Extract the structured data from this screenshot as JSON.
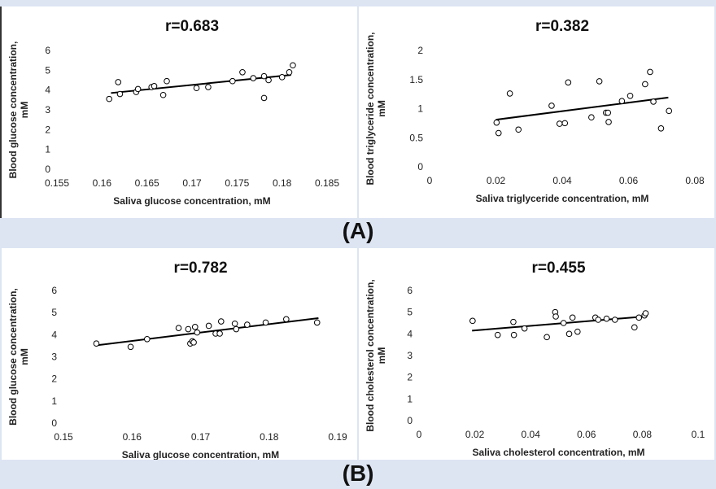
{
  "section_labels": [
    "(A)",
    "(B)"
  ],
  "chart_data": [
    {
      "id": "A1",
      "type": "scatter",
      "title": "r=0.683",
      "xlabel": "Saliva glucose concentration,  mM",
      "ylabel": [
        "Blood glucose concentration,",
        "mM"
      ],
      "xlim": [
        0.155,
        0.185
      ],
      "ylim": [
        0,
        6
      ],
      "xticks": [
        0.155,
        0.16,
        0.165,
        0.17,
        0.175,
        0.18,
        0.185
      ],
      "yticks": [
        0,
        1,
        2,
        3,
        4,
        5,
        6
      ],
      "xtick_labels": [
        "0.155",
        "0.16",
        "0.165",
        "0.17",
        "0.175",
        "0.18",
        "0.185"
      ],
      "ytick_labels": [
        "0",
        "1",
        "2",
        "3",
        "4",
        "5",
        "6"
      ],
      "trendline": [
        [
          0.161,
          3.85
        ],
        [
          0.181,
          4.76
        ]
      ],
      "points": [
        [
          0.1608,
          3.55
        ],
        [
          0.1618,
          4.4
        ],
        [
          0.162,
          3.8
        ],
        [
          0.1638,
          3.9
        ],
        [
          0.164,
          4.05
        ],
        [
          0.1655,
          4.15
        ],
        [
          0.1658,
          4.2
        ],
        [
          0.1668,
          3.75
        ],
        [
          0.1672,
          4.45
        ],
        [
          0.1705,
          4.1
        ],
        [
          0.1718,
          4.15
        ],
        [
          0.1745,
          4.45
        ],
        [
          0.1756,
          4.9
        ],
        [
          0.1768,
          4.6
        ],
        [
          0.178,
          4.7
        ],
        [
          0.178,
          3.6
        ],
        [
          0.1785,
          4.5
        ],
        [
          0.18,
          4.65
        ],
        [
          0.1808,
          4.9
        ],
        [
          0.1812,
          5.25
        ]
      ]
    },
    {
      "id": "A2",
      "type": "scatter",
      "title": "r=0.382",
      "xlabel": "Saliva triglyceride concentration,  mM",
      "ylabel": [
        "Blood triglyceride concentration,",
        "mM"
      ],
      "xlim": [
        0,
        0.08
      ],
      "ylim": [
        0,
        2
      ],
      "xticks": [
        0,
        0.02,
        0.04,
        0.06,
        0.08
      ],
      "yticks": [
        0,
        0.5,
        1,
        1.5,
        2
      ],
      "xtick_labels": [
        "0",
        "0.02",
        "0.04",
        "0.06",
        "0.08"
      ],
      "ytick_labels": [
        "0",
        "0.5",
        "1",
        "1.5",
        "2"
      ],
      "trendline": [
        [
          0.02,
          0.81
        ],
        [
          0.072,
          1.19
        ]
      ],
      "points": [
        [
          0.0202,
          0.76
        ],
        [
          0.0208,
          0.58
        ],
        [
          0.0242,
          1.26
        ],
        [
          0.0268,
          0.64
        ],
        [
          0.0368,
          1.05
        ],
        [
          0.0392,
          0.74
        ],
        [
          0.0408,
          0.75
        ],
        [
          0.0418,
          1.45
        ],
        [
          0.0488,
          0.85
        ],
        [
          0.0512,
          1.47
        ],
        [
          0.0532,
          0.93
        ],
        [
          0.0538,
          0.93
        ],
        [
          0.054,
          0.77
        ],
        [
          0.058,
          1.13
        ],
        [
          0.0605,
          1.22
        ],
        [
          0.065,
          1.42
        ],
        [
          0.0665,
          1.63
        ],
        [
          0.0675,
          1.12
        ],
        [
          0.0698,
          0.66
        ],
        [
          0.0722,
          0.96
        ]
      ]
    },
    {
      "id": "B1",
      "type": "scatter",
      "title": "r=0.782",
      "xlabel": "Saliva glucose concentration,  mM",
      "ylabel": [
        "Blood glucose concentration,",
        "mM"
      ],
      "xlim": [
        0.15,
        0.19
      ],
      "ylim": [
        0,
        6
      ],
      "xticks": [
        0.15,
        0.16,
        0.17,
        0.18,
        0.19
      ],
      "yticks": [
        0,
        1,
        2,
        3,
        4,
        5,
        6
      ],
      "xtick_labels": [
        "0.15",
        "0.16",
        "0.17",
        "0.18",
        "0.19"
      ],
      "ytick_labels": [
        "0",
        "1",
        "2",
        "3",
        "4",
        "5",
        "6"
      ],
      "trendline": [
        [
          0.1548,
          3.52
        ],
        [
          0.1872,
          4.75
        ]
      ],
      "points": [
        [
          0.1548,
          3.6
        ],
        [
          0.1598,
          3.45
        ],
        [
          0.1622,
          3.8
        ],
        [
          0.1668,
          4.3
        ],
        [
          0.1682,
          4.25
        ],
        [
          0.1685,
          3.6
        ],
        [
          0.1688,
          3.7
        ],
        [
          0.169,
          3.65
        ],
        [
          0.1692,
          4.35
        ],
        [
          0.1695,
          4.1
        ],
        [
          0.1712,
          4.4
        ],
        [
          0.1722,
          4.05
        ],
        [
          0.1728,
          4.05
        ],
        [
          0.173,
          4.6
        ],
        [
          0.175,
          4.5
        ],
        [
          0.1752,
          4.25
        ],
        [
          0.1768,
          4.45
        ],
        [
          0.1795,
          4.55
        ],
        [
          0.1825,
          4.7
        ],
        [
          0.187,
          4.55
        ]
      ]
    },
    {
      "id": "B2",
      "type": "scatter",
      "title": "r=0.455",
      "xlabel": "Saliva cholesterol concentration,  mM",
      "ylabel": [
        "Blood cholesterol concentration,",
        "mM"
      ],
      "xlim": [
        0,
        0.1
      ],
      "ylim": [
        0,
        6
      ],
      "xticks": [
        0,
        0.02,
        0.04,
        0.06,
        0.08,
        0.1
      ],
      "yticks": [
        0,
        1,
        2,
        3,
        4,
        5,
        6
      ],
      "xtick_labels": [
        "0",
        "0.02",
        "0.04",
        "0.06",
        "0.08",
        "0.1"
      ],
      "ytick_labels": [
        "0",
        "1",
        "2",
        "3",
        "4",
        "5",
        "6"
      ],
      "trendline": [
        [
          0.019,
          4.15
        ],
        [
          0.081,
          4.8
        ]
      ],
      "points": [
        [
          0.0192,
          4.6
        ],
        [
          0.0282,
          3.95
        ],
        [
          0.0338,
          4.55
        ],
        [
          0.034,
          3.95
        ],
        [
          0.0378,
          4.25
        ],
        [
          0.0458,
          3.85
        ],
        [
          0.0488,
          5.0
        ],
        [
          0.049,
          4.8
        ],
        [
          0.0518,
          4.5
        ],
        [
          0.0538,
          4.0
        ],
        [
          0.055,
          4.75
        ],
        [
          0.0568,
          4.1
        ],
        [
          0.0632,
          4.75
        ],
        [
          0.0642,
          4.65
        ],
        [
          0.0672,
          4.7
        ],
        [
          0.0702,
          4.65
        ],
        [
          0.0772,
          4.3
        ],
        [
          0.0788,
          4.75
        ],
        [
          0.0808,
          4.85
        ],
        [
          0.0812,
          4.95
        ]
      ]
    }
  ]
}
